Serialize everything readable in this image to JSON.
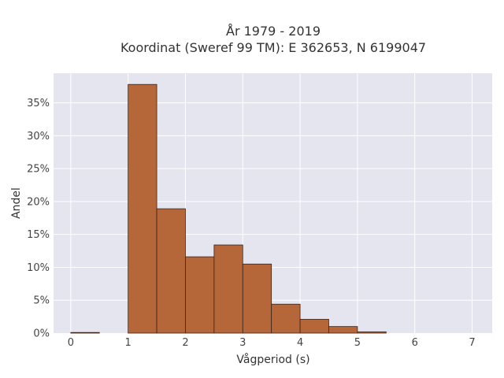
{
  "chart_data": {
    "type": "bar",
    "title_lines": [
      "År 1979 - 2019",
      "Koordinat (Sweref 99 TM): E 362653, N 6199047"
    ],
    "xlabel": "Vågperiod (s)",
    "ylabel": "Andel",
    "xlim": [
      -0.3,
      7.35
    ],
    "ylim": [
      0,
      0.395
    ],
    "x_ticks": [
      0,
      1,
      2,
      3,
      4,
      5,
      6,
      7
    ],
    "y_ticks": [
      0,
      0.05,
      0.1,
      0.15,
      0.2,
      0.25,
      0.3,
      0.35
    ],
    "y_tick_labels": [
      "0%",
      "5%",
      "10%",
      "15%",
      "20%",
      "25%",
      "30%",
      "35%"
    ],
    "bin_width": 0.5,
    "bins": [
      {
        "start": 0.0,
        "value": 0.001
      },
      {
        "start": 0.5,
        "value": 0.0
      },
      {
        "start": 1.0,
        "value": 0.378
      },
      {
        "start": 1.5,
        "value": 0.189
      },
      {
        "start": 2.0,
        "value": 0.116
      },
      {
        "start": 2.5,
        "value": 0.134
      },
      {
        "start": 3.0,
        "value": 0.105
      },
      {
        "start": 3.5,
        "value": 0.044
      },
      {
        "start": 4.0,
        "value": 0.021
      },
      {
        "start": 4.5,
        "value": 0.01
      },
      {
        "start": 5.0,
        "value": 0.002
      }
    ],
    "grid": true,
    "legend": "none",
    "colors": {
      "bar_fill": "#b5673a",
      "bar_edge": "#3a2418",
      "plot_background": "#e5e5ef",
      "grid": "#ffffff"
    }
  }
}
